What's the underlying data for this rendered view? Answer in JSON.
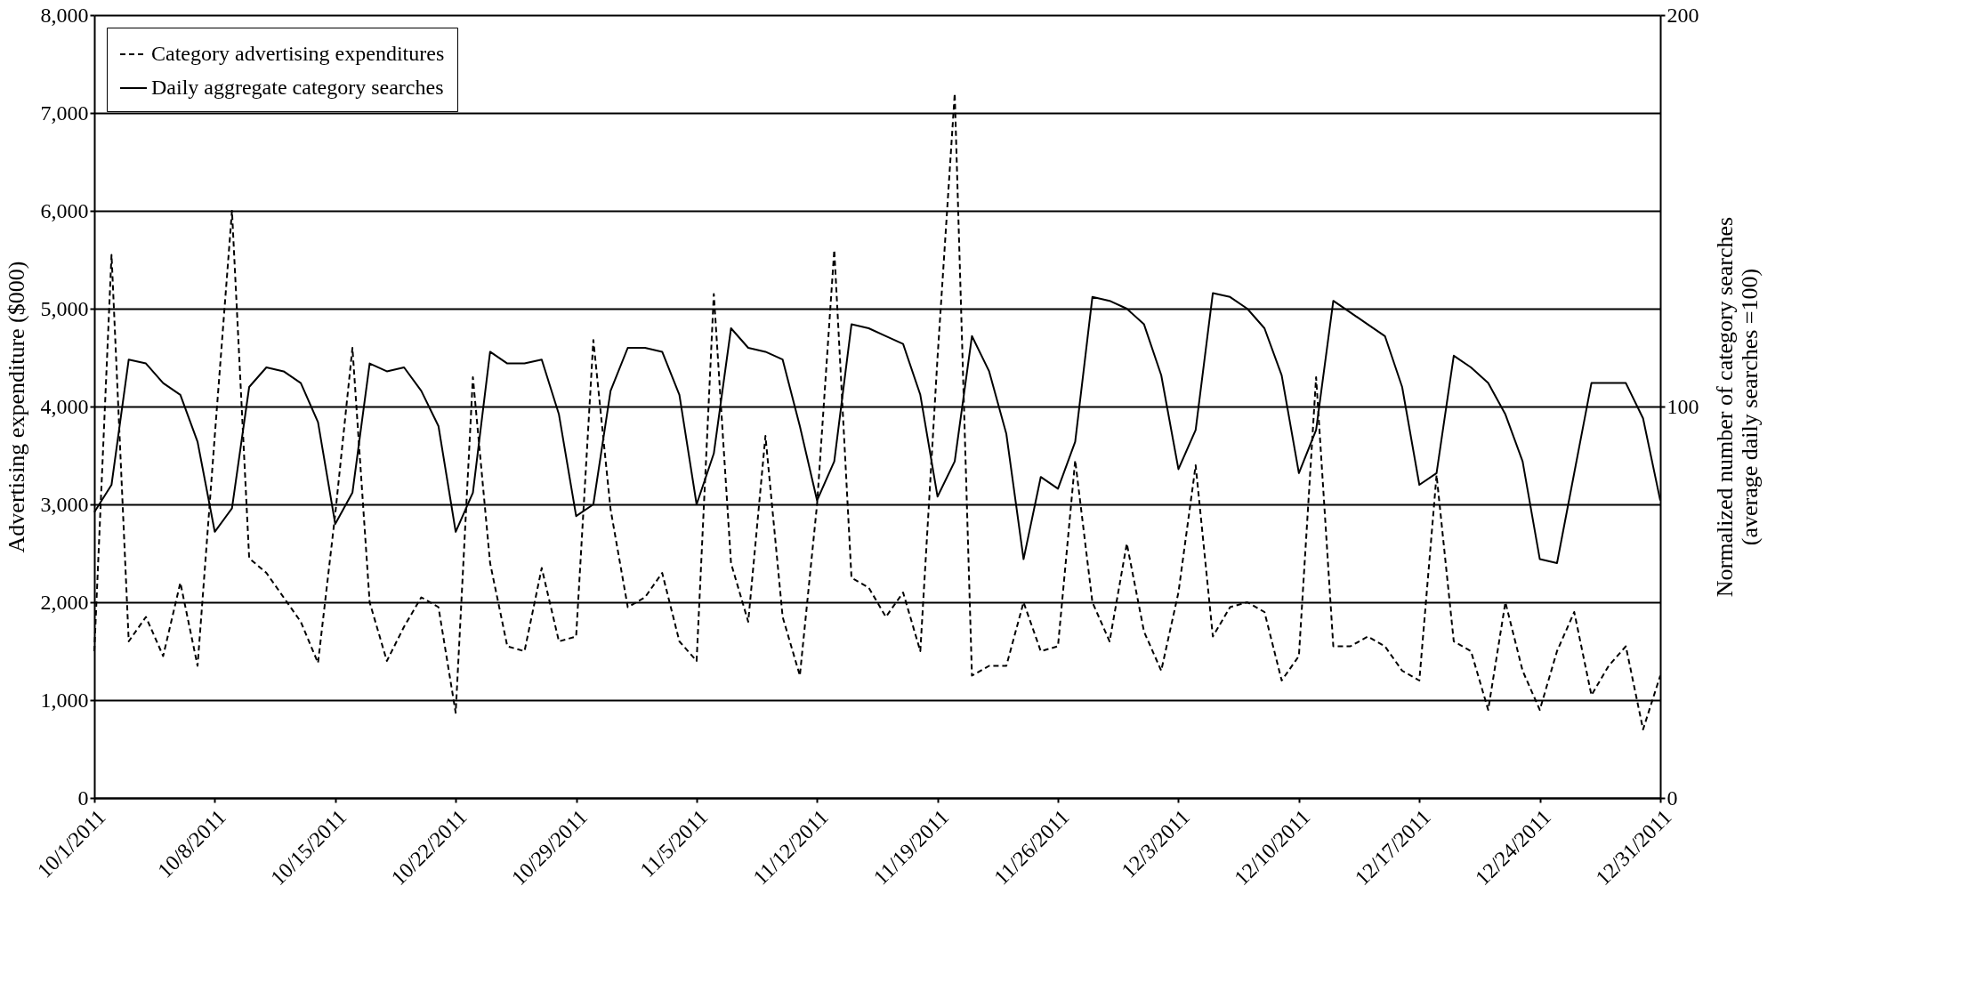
{
  "chart_data": {
    "type": "line",
    "ylabel": "Advertising expenditure ($000)",
    "y2label": "Normalized number of category searches\n(average daily searches =100)",
    "x": [
      "2011-10-01",
      "2011-10-02",
      "2011-10-03",
      "2011-10-04",
      "2011-10-05",
      "2011-10-06",
      "2011-10-07",
      "2011-10-08",
      "2011-10-09",
      "2011-10-10",
      "2011-10-11",
      "2011-10-12",
      "2011-10-13",
      "2011-10-14",
      "2011-10-15",
      "2011-10-16",
      "2011-10-17",
      "2011-10-18",
      "2011-10-19",
      "2011-10-20",
      "2011-10-21",
      "2011-10-22",
      "2011-10-23",
      "2011-10-24",
      "2011-10-25",
      "2011-10-26",
      "2011-10-27",
      "2011-10-28",
      "2011-10-29",
      "2011-10-30",
      "2011-10-31",
      "2011-11-01",
      "2011-11-02",
      "2011-11-03",
      "2011-11-04",
      "2011-11-05",
      "2011-11-06",
      "2011-11-07",
      "2011-11-08",
      "2011-11-09",
      "2011-11-10",
      "2011-11-11",
      "2011-11-12",
      "2011-11-13",
      "2011-11-14",
      "2011-11-15",
      "2011-11-16",
      "2011-11-17",
      "2011-11-18",
      "2011-11-19",
      "2011-11-20",
      "2011-11-21",
      "2011-11-22",
      "2011-11-23",
      "2011-11-24",
      "2011-11-25",
      "2011-11-26",
      "2011-11-27",
      "2011-11-28",
      "2011-11-29",
      "2011-11-30",
      "2011-12-01",
      "2011-12-02",
      "2011-12-03",
      "2011-12-04",
      "2011-12-05",
      "2011-12-06",
      "2011-12-07",
      "2011-12-08",
      "2011-12-09",
      "2011-12-10",
      "2011-12-11",
      "2011-12-12",
      "2011-12-13",
      "2011-12-14",
      "2011-12-15",
      "2011-12-16",
      "2011-12-17",
      "2011-12-18",
      "2011-12-19",
      "2011-12-20",
      "2011-12-21",
      "2011-12-22",
      "2011-12-23",
      "2011-12-24",
      "2011-12-25",
      "2011-12-26",
      "2011-12-27",
      "2011-12-28",
      "2011-12-29",
      "2011-12-30",
      "2011-12-31"
    ],
    "series": [
      {
        "name": "Category advertising expenditures",
        "color": "#000000",
        "line_style": "dashed",
        "values": [
          1500,
          5550,
          1600,
          1850,
          1450,
          2200,
          1350,
          3700,
          6000,
          2450,
          2300,
          2050,
          1800,
          1380,
          2900,
          4600,
          2000,
          1400,
          1750,
          2050,
          1950,
          870,
          4300,
          2400,
          1550,
          1500,
          2350,
          1600,
          1650,
          4680,
          2950,
          1950,
          2050,
          2300,
          1600,
          1400,
          5150,
          2400,
          1800,
          3700,
          1850,
          1250,
          3000,
          5600,
          2250,
          2150,
          1850,
          2100,
          1500,
          4500,
          7200,
          1250,
          1350,
          1350,
          2000,
          1500,
          1550,
          3450,
          2000,
          1600,
          2600,
          1700,
          1300,
          2100,
          3400,
          1650,
          1950,
          2000,
          1900,
          1200,
          1450,
          4300,
          1550,
          1550,
          1650,
          1550,
          1300,
          1200,
          3300,
          1600,
          1500,
          900,
          2000,
          1300,
          900,
          1500,
          1900,
          1050,
          1350,
          1550,
          700,
          1250
        ]
      },
      {
        "name": "Daily aggregate category searches",
        "color": "#000000",
        "line_style": "solid",
        "axis": "y2",
        "values": [
          73,
          80,
          112,
          111,
          106,
          103,
          91,
          68,
          74,
          105,
          110,
          109,
          106,
          96,
          70,
          78,
          111,
          109,
          110,
          104,
          95,
          68,
          78,
          114,
          111,
          111,
          112,
          98,
          72,
          75,
          104,
          115,
          115,
          114,
          103,
          75,
          88,
          120,
          115,
          114,
          112,
          95,
          76,
          86,
          121,
          120,
          118,
          116,
          103,
          77,
          86,
          118,
          109,
          93,
          61,
          82,
          79,
          91,
          128,
          127,
          125,
          121,
          108,
          84,
          94,
          129,
          128,
          125,
          120,
          108,
          83,
          94,
          127,
          124,
          121,
          118,
          105,
          80,
          83,
          113,
          110,
          106,
          98,
          86,
          61,
          60,
          83,
          106,
          106,
          106,
          97,
          76
        ]
      }
    ],
    "xlim": [
      "2011-10-01",
      "2011-12-31"
    ],
    "xticks": [
      {
        "value": "2011-10-01",
        "label": "10/1/2011"
      },
      {
        "value": "2011-10-08",
        "label": "10/8/2011"
      },
      {
        "value": "2011-10-15",
        "label": "10/15/2011"
      },
      {
        "value": "2011-10-22",
        "label": "10/22/2011"
      },
      {
        "value": "2011-10-29",
        "label": "10/29/2011"
      },
      {
        "value": "2011-11-05",
        "label": "11/5/2011"
      },
      {
        "value": "2011-11-12",
        "label": "11/12/2011"
      },
      {
        "value": "2011-11-19",
        "label": "11/19/2011"
      },
      {
        "value": "2011-11-26",
        "label": "11/26/2011"
      },
      {
        "value": "2011-12-03",
        "label": "12/3/2011"
      },
      {
        "value": "2011-12-10",
        "label": "12/10/2011"
      },
      {
        "value": "2011-12-17",
        "label": "12/17/2011"
      },
      {
        "value": "2011-12-24",
        "label": "12/24/2011"
      },
      {
        "value": "2011-12-31",
        "label": "12/31/2011"
      }
    ],
    "ylim": [
      0,
      8000
    ],
    "yticks": [
      {
        "value": 0,
        "label": "0"
      },
      {
        "value": 1000,
        "label": "1,000"
      },
      {
        "value": 2000,
        "label": "2,000"
      },
      {
        "value": 3000,
        "label": "3,000"
      },
      {
        "value": 4000,
        "label": "4,000"
      },
      {
        "value": 5000,
        "label": "5,000"
      },
      {
        "value": 6000,
        "label": "6,000"
      },
      {
        "value": 7000,
        "label": "7,000"
      },
      {
        "value": 8000,
        "label": "8,000"
      }
    ],
    "y2lim": [
      0,
      200
    ],
    "y2ticks": [
      {
        "value": 0,
        "label": "0"
      },
      {
        "value": 100,
        "label": "100"
      },
      {
        "value": 200,
        "label": "200"
      }
    ],
    "grid": "y",
    "legend": "top left"
  }
}
